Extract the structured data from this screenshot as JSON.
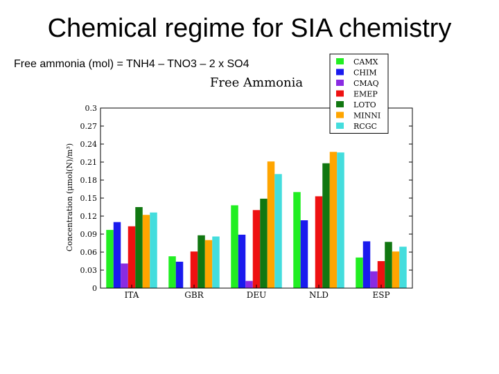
{
  "slide": {
    "title": "Chemical regime for SIA chemistry",
    "subtitle": "Free ammonia (mol) = TNH4 – TNO3 – 2 x SO4"
  },
  "chart_data": {
    "type": "bar",
    "title": "Free Ammonia",
    "xlabel": "",
    "ylabel": "Concentration (μmol(N)/m³)",
    "ylim": [
      0,
      0.3
    ],
    "yticks": [
      "0",
      "0.03",
      "0.06",
      "0.09",
      "0.12",
      "0.15",
      "0.18",
      "0.21",
      "0.24",
      "0.27",
      "0.3"
    ],
    "categories": [
      "ITA",
      "GBR",
      "DEU",
      "NLD",
      "ESP"
    ],
    "legend_position": "top-right",
    "series": [
      {
        "name": "CAMX",
        "color": "#22ee22",
        "values": [
          0.097,
          0.053,
          0.138,
          0.16,
          0.051
        ]
      },
      {
        "name": "CHIM",
        "color": "#1a1aee",
        "values": [
          0.11,
          0.044,
          0.089,
          0.113,
          0.078
        ]
      },
      {
        "name": "CMAQ",
        "color": "#8a2be2",
        "values": [
          0.041,
          null,
          0.012,
          null,
          0.028
        ]
      },
      {
        "name": "EMEP",
        "color": "#ee1111",
        "values": [
          0.103,
          0.061,
          0.13,
          0.153,
          0.045
        ]
      },
      {
        "name": "LOTO",
        "color": "#117711",
        "values": [
          0.135,
          0.088,
          0.149,
          0.208,
          0.077
        ]
      },
      {
        "name": "MINNI",
        "color": "#ffa500",
        "values": [
          0.122,
          0.08,
          0.211,
          0.227,
          0.061
        ]
      },
      {
        "name": "RCGC",
        "color": "#44dddd",
        "values": [
          0.126,
          0.086,
          0.19,
          0.226,
          0.069
        ]
      }
    ]
  }
}
